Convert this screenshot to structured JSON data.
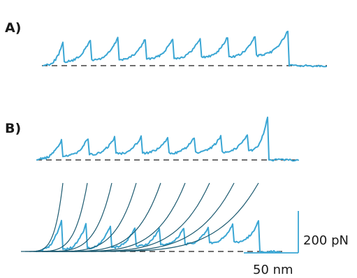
{
  "chart_data": [
    {
      "type": "line",
      "panel_label": "A)",
      "baseline": "dashed",
      "peak_force_pN": [
        107,
        123,
        131,
        127,
        130,
        133,
        137,
        141,
        166
      ],
      "baseline_force_pN": [
        5,
        20,
        28,
        30,
        33,
        36,
        41,
        43,
        49
      ]
    },
    {
      "type": "line",
      "panel_label": "B)",
      "baseline": "dashed",
      "peak_force_pN": [
        96,
        104,
        108,
        111,
        103,
        105,
        113,
        123,
        201
      ],
      "baseline_force_pN": [
        5,
        18,
        26,
        31,
        34,
        33,
        36,
        39,
        46
      ]
    },
    {
      "type": "line",
      "panel_label": "",
      "baseline": "dashed",
      "fit_curves": "worm-like-chain",
      "fit_count": 9,
      "peak_force_pN": [
        148,
        129,
        124,
        116,
        108,
        113,
        115,
        131,
        142
      ],
      "scale_bars": {
        "force": "200 pN",
        "distance": "50 nm"
      }
    }
  ],
  "colors": {
    "trace": "#3aa6d4",
    "fit": "#1c5a70",
    "baseline": "#1a1a1a"
  }
}
